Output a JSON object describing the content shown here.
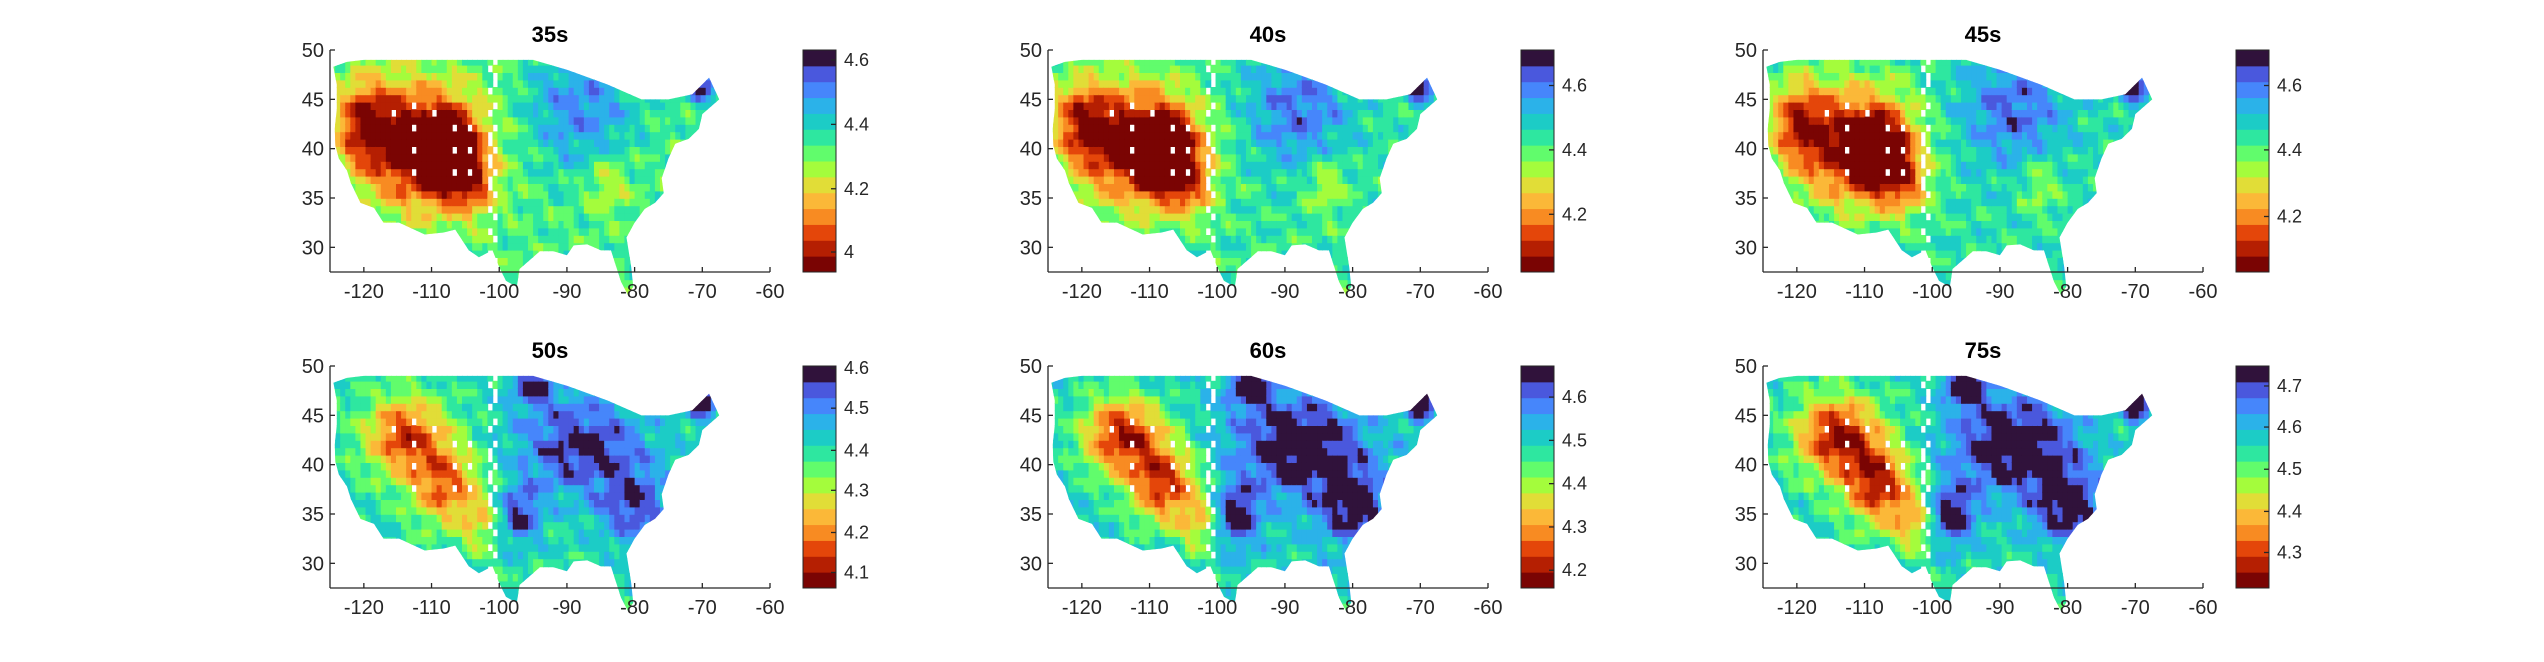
{
  "figure": {
    "colors": [
      "#7a0403",
      "#b51f02",
      "#e4460a",
      "#f88b22",
      "#fbb838",
      "#e1dd37",
      "#a4fc3c",
      "#61fc6c",
      "#2ee7a0",
      "#1cccc6",
      "#2bb2e9",
      "#4686fb",
      "#4a58dd",
      "#30123b"
    ],
    "x_ticks": [
      "-120",
      "-110",
      "-100",
      "-90",
      "-80",
      "-70",
      "-60"
    ],
    "y_ticks": [
      "30",
      "35",
      "40",
      "45",
      "50"
    ],
    "panels": [
      {
        "title": "35s",
        "cbar_ticks": [
          "4",
          "4.2",
          "4.4",
          "4.6"
        ]
      },
      {
        "title": "40s",
        "cbar_ticks": [
          "4.2",
          "4.4",
          "4.6"
        ]
      },
      {
        "title": "45s",
        "cbar_ticks": [
          "4.2",
          "4.4",
          "4.6"
        ]
      },
      {
        "title": "50s",
        "cbar_ticks": [
          "4.1",
          "4.2",
          "4.3",
          "4.4",
          "4.5",
          "4.6"
        ]
      },
      {
        "title": "60s",
        "cbar_ticks": [
          "4.2",
          "4.3",
          "4.4",
          "4.5",
          "4.6"
        ]
      },
      {
        "title": "75s",
        "cbar_ticks": [
          "4.3",
          "4.4",
          "4.5",
          "4.6",
          "4.7"
        ]
      }
    ]
  }
}
